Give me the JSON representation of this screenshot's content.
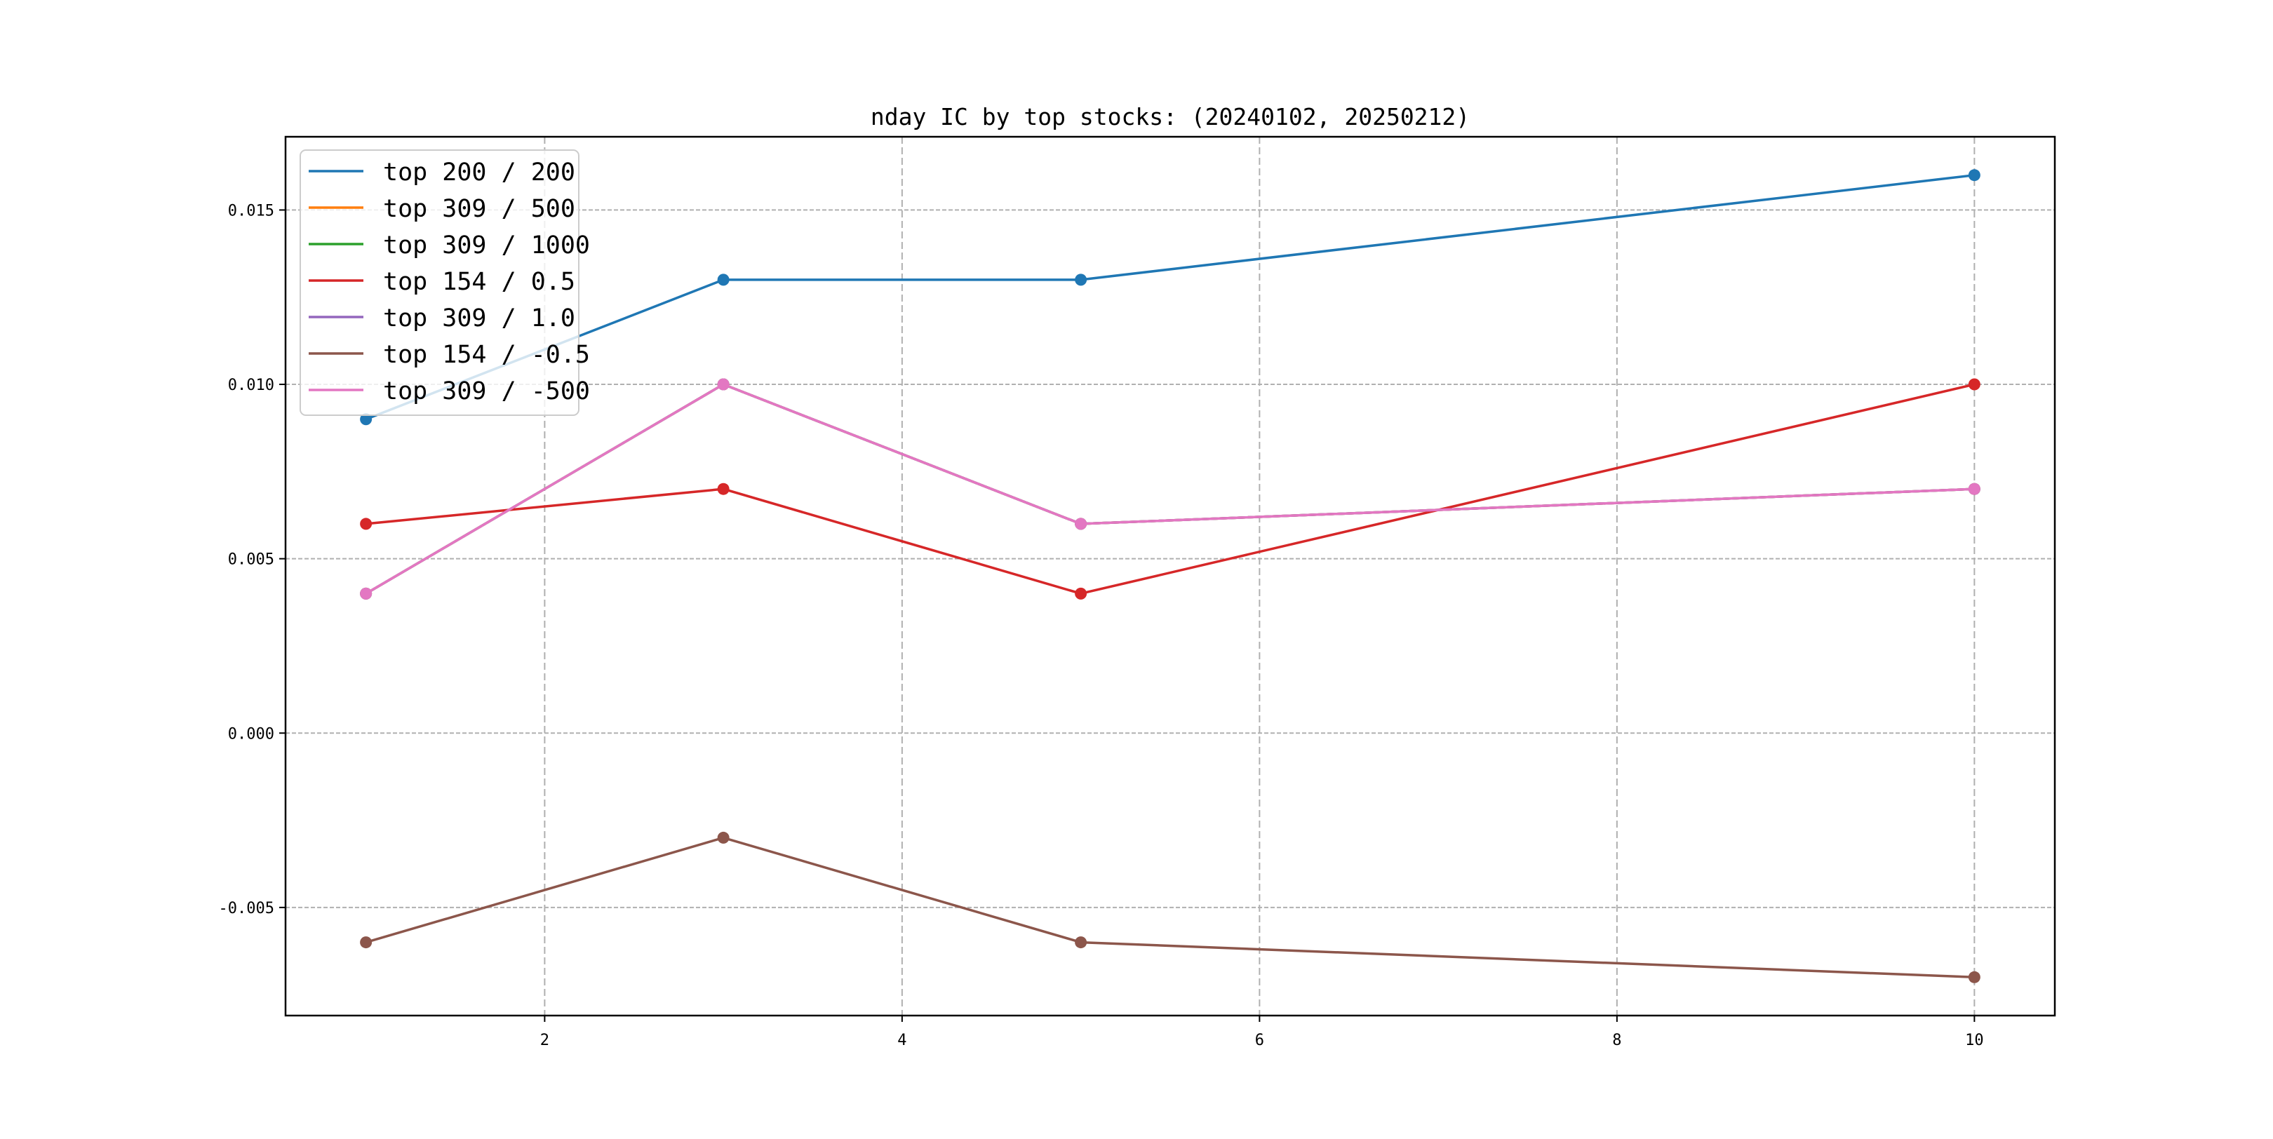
{
  "chart_data": {
    "type": "line",
    "title": "nday IC by top stocks: (20240102, 20250212)",
    "xlabel": "",
    "ylabel": "",
    "x": [
      1,
      3,
      5,
      10
    ],
    "xlim": [
      0.55,
      10.45
    ],
    "ylim": [
      -0.0081,
      0.0171
    ],
    "xticks": [
      2,
      4,
      6,
      8,
      10
    ],
    "xtick_labels": [
      "2",
      "4",
      "6",
      "8",
      "10"
    ],
    "yticks": [
      -0.005,
      0.0,
      0.005,
      0.01,
      0.015
    ],
    "ytick_labels": [
      "-0.005",
      "0.000",
      "0.005",
      "0.010",
      "0.015"
    ],
    "grid": true,
    "legend_position": "top-left",
    "series": [
      {
        "name": "top 200 / 200",
        "color": "#1f77b4",
        "values": [
          0.009,
          0.013,
          0.013,
          0.016
        ]
      },
      {
        "name": "top 309 / 500",
        "color": "#ff7f0e",
        "values": [
          0.004,
          0.01,
          0.006,
          0.007
        ]
      },
      {
        "name": "top 309 / 1000",
        "color": "#2ca02c",
        "values": [
          0.004,
          0.01,
          0.006,
          0.007
        ]
      },
      {
        "name": "top 154 / 0.5",
        "color": "#d62728",
        "values": [
          0.006,
          0.007,
          0.004,
          0.01
        ]
      },
      {
        "name": "top 309 / 1.0",
        "color": "#9467bd",
        "values": [
          0.004,
          0.01,
          0.006,
          0.007
        ]
      },
      {
        "name": "top 154 / -0.5",
        "color": "#8c564b",
        "values": [
          -0.006,
          -0.003,
          -0.006,
          -0.007
        ]
      },
      {
        "name": "top 309 / -500",
        "color": "#e377c2",
        "values": [
          0.004,
          0.01,
          0.006,
          0.007
        ]
      }
    ]
  }
}
